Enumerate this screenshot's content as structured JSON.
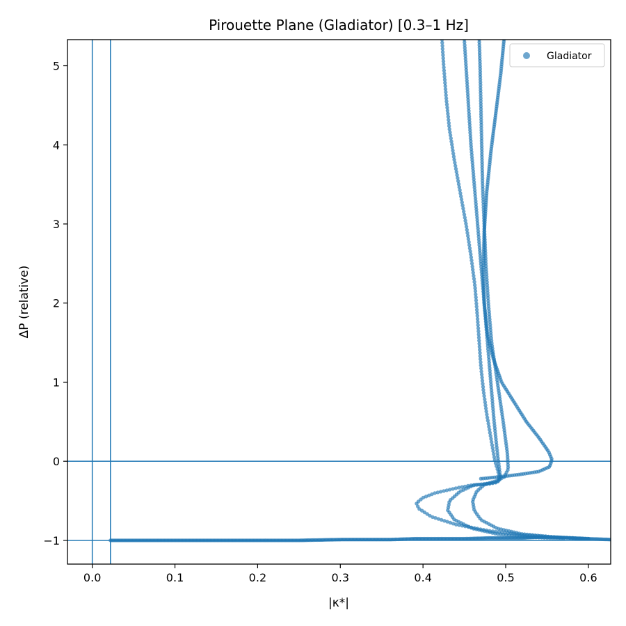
{
  "chart_data": {
    "type": "scatter",
    "title": "Pirouette Plane (Gladiator)  [0.3–1 Hz]",
    "xlabel": "|κ*|",
    "ylabel": "ΔP (relative)",
    "xlim": [
      -0.03,
      0.627
    ],
    "ylim": [
      -1.3,
      5.33
    ],
    "xticks": [
      0.0,
      0.1,
      0.2,
      0.3,
      0.4,
      0.5,
      0.6
    ],
    "xtick_labels": [
      "0.0",
      "0.1",
      "0.2",
      "0.3",
      "0.4",
      "0.5",
      "0.6"
    ],
    "yticks": [
      -1,
      0,
      1,
      2,
      3,
      4,
      5
    ],
    "ytick_labels": [
      "−1",
      "0",
      "1",
      "2",
      "3",
      "4",
      "5"
    ],
    "grid": false,
    "legend_position": "top-right",
    "reference_lines": {
      "vertical_x": [
        0.0,
        0.022
      ],
      "horizontal_y": [
        0,
        -1
      ],
      "color": "#1f77b4"
    },
    "series": [
      {
        "name": "Gladiator",
        "color": "#1f77b4",
        "alpha": 0.65,
        "branches": [
          {
            "x_baseline": [
              0.022,
              0.09,
              0.17,
              0.25,
              0.3,
              0.33,
              0.36,
              0.39,
              0.42,
              0.45,
              0.48,
              0.5,
              0.52,
              0.54,
              0.56,
              0.58,
              0.6,
              0.627
            ],
            "y_baseline": [
              -1.0,
              -1.0,
              -1.0,
              -1.0,
              -0.99,
              -0.99,
              -0.99,
              -0.98,
              -0.98,
              -0.98,
              -0.97,
              -0.97,
              -0.97,
              -0.96,
              -0.96,
              -0.97,
              -0.98,
              -0.99
            ]
          },
          {
            "x": [
              0.423,
              0.425,
              0.428,
              0.432,
              0.438,
              0.445,
              0.452,
              0.458,
              0.463,
              0.466,
              0.468,
              0.47,
              0.473,
              0.477,
              0.482,
              0.487,
              0.49,
              0.492,
              0.492,
              0.488,
              0.478,
              0.46,
              0.44,
              0.415,
              0.4,
              0.392,
              0.395,
              0.41,
              0.44,
              0.48,
              0.52,
              0.56,
              0.6
            ],
            "y": [
              5.33,
              5.0,
              4.6,
              4.2,
              3.8,
              3.4,
              3.0,
              2.6,
              2.2,
              1.8,
              1.5,
              1.2,
              0.9,
              0.6,
              0.3,
              0.0,
              -0.1,
              -0.18,
              -0.24,
              -0.27,
              -0.29,
              -0.3,
              -0.34,
              -0.4,
              -0.46,
              -0.53,
              -0.6,
              -0.7,
              -0.8,
              -0.88,
              -0.93,
              -0.96,
              -0.98
            ]
          },
          {
            "x": [
              0.45,
              0.452,
              0.455,
              0.458,
              0.462,
              0.466,
              0.47,
              0.474,
              0.478,
              0.482,
              0.486,
              0.49,
              0.493,
              0.494,
              0.49,
              0.48,
              0.462,
              0.445,
              0.432,
              0.43,
              0.438,
              0.46,
              0.49,
              0.53,
              0.57
            ],
            "y": [
              5.33,
              5.0,
              4.5,
              4.0,
              3.5,
              3.0,
              2.5,
              2.0,
              1.5,
              1.0,
              0.5,
              0.1,
              -0.15,
              -0.22,
              -0.26,
              -0.28,
              -0.3,
              -0.38,
              -0.5,
              -0.62,
              -0.74,
              -0.85,
              -0.92,
              -0.96,
              -0.98
            ]
          },
          {
            "x": [
              0.468,
              0.469,
              0.47,
              0.471,
              0.472,
              0.474,
              0.476,
              0.479,
              0.483,
              0.49,
              0.497,
              0.502,
              0.503,
              0.498,
              0.488,
              0.475,
              0.465,
              0.46,
              0.462,
              0.47,
              0.49,
              0.52,
              0.56,
              0.6
            ],
            "y": [
              5.33,
              5.0,
              4.5,
              4.0,
              3.5,
              3.0,
              2.5,
              2.0,
              1.5,
              1.0,
              0.5,
              0.1,
              -0.1,
              -0.2,
              -0.25,
              -0.29,
              -0.38,
              -0.5,
              -0.62,
              -0.74,
              -0.85,
              -0.92,
              -0.96,
              -0.98
            ]
          },
          {
            "x": [
              0.498,
              0.494,
              0.488,
              0.482,
              0.477,
              0.474,
              0.473,
              0.474,
              0.478,
              0.485,
              0.495,
              0.51,
              0.525,
              0.54,
              0.552,
              0.556,
              0.553,
              0.54,
              0.515,
              0.49,
              0.47
            ],
            "y": [
              5.33,
              4.9,
              4.4,
              3.9,
              3.4,
              2.9,
              2.4,
              2.0,
              1.6,
              1.3,
              1.0,
              0.75,
              0.5,
              0.3,
              0.12,
              0.02,
              -0.07,
              -0.13,
              -0.17,
              -0.2,
              -0.22
            ]
          }
        ]
      }
    ]
  }
}
